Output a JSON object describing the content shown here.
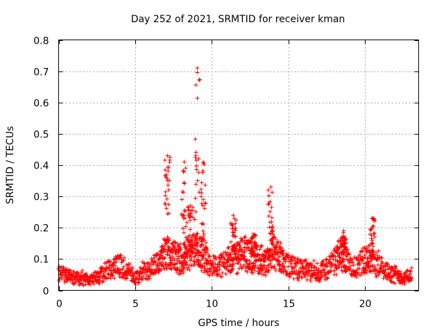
{
  "chart_data": {
    "type": "scatter",
    "title": "Day 252 of 2021, SRMTID for receiver kman",
    "xlabel": "GPS time / hours",
    "ylabel": "SRMTID / TECUs",
    "xlim": [
      0,
      23.5
    ],
    "ylim": [
      0,
      0.8
    ],
    "x_ticks": [
      0,
      5,
      10,
      15,
      20
    ],
    "x_tick_labels": [
      "0",
      "5",
      "10",
      "15",
      "20"
    ],
    "y_ticks": [
      0,
      0.1,
      0.2,
      0.3,
      0.4,
      0.5,
      0.6,
      0.7,
      0.8
    ],
    "y_tick_labels": [
      "0",
      "0.1",
      "0.2",
      "0.3",
      "0.4",
      "0.5",
      "0.6",
      "0.7",
      "0.8"
    ],
    "grid": true,
    "marker": "+",
    "marker_color": "#ff0000",
    "series": [
      {
        "name": "SRMTID",
        "profile_x": [
          0,
          0.5,
          1,
          1.5,
          2,
          2.5,
          3,
          3.5,
          4,
          4.5,
          5,
          5.5,
          6,
          6.5,
          7,
          7.5,
          8,
          8.5,
          9,
          9.5,
          10,
          10.5,
          11,
          11.5,
          12,
          12.5,
          13,
          13.5,
          14,
          14.5,
          15,
          15.5,
          16,
          16.5,
          17,
          17.5,
          18,
          18.5,
          19,
          19.5,
          20,
          20.5,
          21,
          21.5,
          22,
          22.5,
          23
        ],
        "profile_y": [
          0.06,
          0.05,
          0.04,
          0.04,
          0.035,
          0.04,
          0.06,
          0.07,
          0.08,
          0.06,
          0.04,
          0.06,
          0.07,
          0.09,
          0.12,
          0.11,
          0.1,
          0.12,
          0.13,
          0.11,
          0.07,
          0.08,
          0.09,
          0.1,
          0.12,
          0.11,
          0.1,
          0.09,
          0.12,
          0.1,
          0.08,
          0.07,
          0.07,
          0.06,
          0.06,
          0.07,
          0.09,
          0.12,
          0.08,
          0.07,
          0.1,
          0.09,
          0.08,
          0.06,
          0.05,
          0.04,
          0.05
        ],
        "peaks": [
          {
            "x": 7.1,
            "ymax": 0.43
          },
          {
            "x": 8.2,
            "ymax": 0.41
          },
          {
            "x": 8.6,
            "ymax": 0.27
          },
          {
            "x": 9.05,
            "ymax": 0.71
          },
          {
            "x": 9.45,
            "ymax": 0.41
          },
          {
            "x": 11.4,
            "ymax": 0.24
          },
          {
            "x": 12.7,
            "ymax": 0.18
          },
          {
            "x": 13.85,
            "ymax": 0.33
          },
          {
            "x": 18.6,
            "ymax": 0.19
          },
          {
            "x": 20.45,
            "ymax": 0.23
          }
        ]
      }
    ]
  }
}
